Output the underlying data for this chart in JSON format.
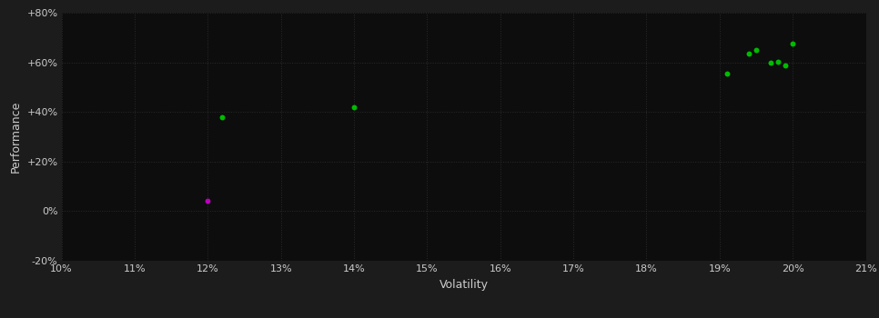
{
  "background_color": "#1c1c1c",
  "plot_bg_color": "#0d0d0d",
  "grid_color": "#2a2a2a",
  "text_color": "#cccccc",
  "xlabel": "Volatility",
  "ylabel": "Performance",
  "xlim": [
    0.1,
    0.21
  ],
  "ylim": [
    -0.2,
    0.8
  ],
  "xticks": [
    0.1,
    0.11,
    0.12,
    0.13,
    0.14,
    0.15,
    0.16,
    0.17,
    0.18,
    0.19,
    0.2,
    0.21
  ],
  "yticks": [
    -0.2,
    0.0,
    0.2,
    0.4,
    0.6,
    0.8
  ],
  "ytick_labels": [
    "-20%",
    "0%",
    "+20%",
    "+40%",
    "+60%",
    "+80%"
  ],
  "green_points": [
    [
      0.122,
      0.38
    ],
    [
      0.14,
      0.42
    ],
    [
      0.191,
      0.555
    ],
    [
      0.194,
      0.635
    ],
    [
      0.195,
      0.648
    ],
    [
      0.197,
      0.598
    ],
    [
      0.198,
      0.602
    ],
    [
      0.199,
      0.587
    ],
    [
      0.2,
      0.675
    ]
  ],
  "magenta_points": [
    [
      0.12,
      0.04
    ]
  ],
  "green_color": "#00bb00",
  "magenta_color": "#bb00bb",
  "point_size": 18,
  "figsize": [
    9.66,
    3.5
  ],
  "dpi": 100
}
